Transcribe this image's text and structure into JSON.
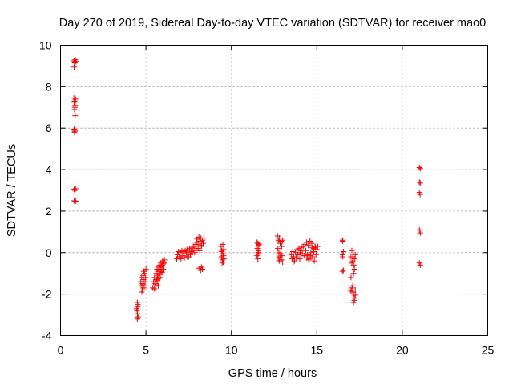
{
  "chart_data": {
    "type": "scatter",
    "title": "Day 270 of 2019, Sidereal Day-to-day VTEC variation (SDTVAR) for receiver mao0",
    "xlabel": "GPS time / hours",
    "ylabel": "SDTVAR / TECUs",
    "xlim": [
      0,
      25
    ],
    "ylim": [
      -4,
      10
    ],
    "xticks": [
      "0",
      "5",
      "10",
      "15",
      "20",
      "25"
    ],
    "yticks": [
      "-4",
      "-2",
      "0",
      "2",
      "4",
      "6",
      "8",
      "10"
    ],
    "grid": true,
    "marker": "+",
    "color": "#ff0000",
    "series": [
      {
        "name": "SDTVAR",
        "points": [
          [
            0.8,
            9.25
          ],
          [
            0.82,
            9.2
          ],
          [
            0.86,
            9.3
          ],
          [
            0.9,
            9.22
          ],
          [
            0.84,
            9.15
          ],
          [
            0.8,
            8.95
          ],
          [
            0.78,
            7.45
          ],
          [
            0.82,
            7.3
          ],
          [
            0.86,
            7.1
          ],
          [
            0.84,
            7.0
          ],
          [
            0.8,
            7.25
          ],
          [
            0.88,
            7.4
          ],
          [
            0.82,
            6.9
          ],
          [
            0.86,
            6.6
          ],
          [
            0.8,
            5.95
          ],
          [
            0.84,
            5.85
          ],
          [
            0.82,
            5.8
          ],
          [
            0.86,
            5.9
          ],
          [
            0.8,
            3.05
          ],
          [
            0.84,
            3.0
          ],
          [
            0.88,
            3.08
          ],
          [
            0.8,
            2.5
          ],
          [
            0.84,
            2.45
          ],
          [
            0.88,
            2.48
          ],
          [
            4.5,
            -2.4
          ],
          [
            4.52,
            -2.6
          ],
          [
            4.48,
            -2.8
          ],
          [
            4.5,
            -2.95
          ],
          [
            4.54,
            -3.1
          ],
          [
            4.5,
            -3.2
          ],
          [
            4.46,
            -2.7
          ],
          [
            4.52,
            -2.5
          ],
          [
            4.7,
            -1.4
          ],
          [
            4.72,
            -1.6
          ],
          [
            4.75,
            -1.2
          ],
          [
            4.78,
            -1.8
          ],
          [
            4.8,
            -1.5
          ],
          [
            4.83,
            -1.1
          ],
          [
            4.86,
            -1.3
          ],
          [
            4.88,
            -0.9
          ],
          [
            4.9,
            -1.7
          ],
          [
            4.92,
            -1.0
          ],
          [
            4.95,
            -1.4
          ],
          [
            4.98,
            -1.2
          ],
          [
            5.0,
            -0.8
          ],
          [
            4.76,
            -1.9
          ],
          [
            4.84,
            -1.55
          ],
          [
            5.4,
            -1.7
          ],
          [
            5.45,
            -1.4
          ],
          [
            5.5,
            -1.2
          ],
          [
            5.55,
            -1.5
          ],
          [
            5.6,
            -1.0
          ],
          [
            5.62,
            -1.3
          ],
          [
            5.65,
            -0.8
          ],
          [
            5.68,
            -1.1
          ],
          [
            5.7,
            -0.9
          ],
          [
            5.72,
            -1.6
          ],
          [
            5.75,
            -0.7
          ],
          [
            5.78,
            -1.0
          ],
          [
            5.8,
            -0.6
          ],
          [
            5.82,
            -1.2
          ],
          [
            5.85,
            -0.8
          ],
          [
            5.88,
            -0.5
          ],
          [
            5.9,
            -0.9
          ],
          [
            5.92,
            -0.7
          ],
          [
            5.95,
            -0.6
          ],
          [
            5.98,
            -0.4
          ],
          [
            6.0,
            -0.8
          ],
          [
            6.02,
            -0.55
          ],
          [
            6.05,
            -0.5
          ],
          [
            6.08,
            -0.35
          ],
          [
            5.5,
            -1.75
          ],
          [
            5.58,
            -1.55
          ],
          [
            5.66,
            -1.35
          ],
          [
            5.74,
            -1.25
          ],
          [
            5.84,
            -1.05
          ],
          [
            5.94,
            -0.95
          ],
          [
            6.8,
            -0.3
          ],
          [
            6.85,
            -0.1
          ],
          [
            6.9,
            0.05
          ],
          [
            6.95,
            -0.2
          ],
          [
            7.0,
            0.0
          ],
          [
            7.05,
            -0.3
          ],
          [
            7.1,
            0.1
          ],
          [
            7.15,
            -0.15
          ],
          [
            7.2,
            0.05
          ],
          [
            7.25,
            -0.25
          ],
          [
            7.3,
            0.1
          ],
          [
            7.35,
            -0.05
          ],
          [
            7.4,
            0.15
          ],
          [
            7.45,
            0.0
          ],
          [
            7.5,
            -0.2
          ],
          [
            7.55,
            0.2
          ],
          [
            7.6,
            -0.1
          ],
          [
            7.65,
            0.05
          ],
          [
            7.7,
            0.25
          ],
          [
            7.75,
            0.1
          ],
          [
            7.8,
            0.3
          ],
          [
            7.85,
            0.0
          ],
          [
            7.9,
            0.4
          ],
          [
            7.95,
            0.2
          ],
          [
            7.0,
            -0.2
          ],
          [
            7.4,
            -0.2
          ],
          [
            7.95,
            0.5
          ],
          [
            8.0,
            0.65
          ],
          [
            8.05,
            0.4
          ],
          [
            8.1,
            0.75
          ],
          [
            8.15,
            0.55
          ],
          [
            8.2,
            0.7
          ],
          [
            8.25,
            0.35
          ],
          [
            8.3,
            0.6
          ],
          [
            8.35,
            0.45
          ],
          [
            8.4,
            0.7
          ],
          [
            8.05,
            0.2
          ],
          [
            8.15,
            0.1
          ],
          [
            8.25,
            0.3
          ],
          [
            8.1,
            -0.75
          ],
          [
            8.2,
            -0.85
          ],
          [
            8.3,
            -0.8
          ],
          [
            8.25,
            -0.7
          ],
          [
            9.4,
            0.3
          ],
          [
            9.45,
            0.1
          ],
          [
            9.5,
            -0.05
          ],
          [
            9.55,
            0.15
          ],
          [
            9.42,
            -0.2
          ],
          [
            9.48,
            -0.35
          ],
          [
            9.52,
            -0.45
          ],
          [
            9.56,
            -0.3
          ],
          [
            9.44,
            0.05
          ],
          [
            9.5,
            0.4
          ],
          [
            9.46,
            -0.5
          ],
          [
            9.54,
            -0.15
          ],
          [
            11.5,
            0.5
          ],
          [
            11.55,
            0.45
          ],
          [
            11.6,
            0.35
          ],
          [
            11.52,
            0.2
          ],
          [
            11.58,
            0.0
          ],
          [
            11.55,
            -0.05
          ],
          [
            11.5,
            -0.15
          ],
          [
            11.55,
            -0.3
          ],
          [
            11.6,
            0.1
          ],
          [
            11.62,
            0.4
          ],
          [
            12.7,
            0.8
          ],
          [
            12.75,
            0.6
          ],
          [
            12.8,
            0.7
          ],
          [
            12.85,
            0.45
          ],
          [
            12.9,
            0.55
          ],
          [
            12.95,
            0.3
          ],
          [
            13.0,
            0.6
          ],
          [
            12.72,
            0.2
          ],
          [
            12.78,
            0.0
          ],
          [
            12.84,
            -0.2
          ],
          [
            12.88,
            -0.05
          ],
          [
            12.92,
            -0.35
          ],
          [
            12.96,
            -0.15
          ],
          [
            13.0,
            -0.45
          ],
          [
            12.8,
            -0.4
          ],
          [
            12.74,
            -0.25
          ],
          [
            13.5,
            -0.1
          ],
          [
            13.55,
            -0.3
          ],
          [
            13.6,
            0.05
          ],
          [
            13.65,
            -0.2
          ],
          [
            13.7,
            -0.4
          ],
          [
            13.75,
            0.0
          ],
          [
            13.8,
            -0.25
          ],
          [
            13.85,
            0.15
          ],
          [
            13.9,
            -0.1
          ],
          [
            13.95,
            0.2
          ],
          [
            14.0,
            -0.3
          ],
          [
            14.05,
            0.1
          ],
          [
            14.1,
            0.25
          ],
          [
            14.15,
            -0.05
          ],
          [
            14.2,
            0.3
          ],
          [
            14.25,
            -0.15
          ],
          [
            14.3,
            0.4
          ],
          [
            14.35,
            0.1
          ],
          [
            14.4,
            0.5
          ],
          [
            14.45,
            -0.1
          ],
          [
            14.5,
            0.35
          ],
          [
            14.55,
            -0.3
          ],
          [
            14.6,
            0.55
          ],
          [
            14.65,
            0.0
          ],
          [
            14.7,
            0.45
          ],
          [
            14.75,
            -0.2
          ],
          [
            14.8,
            0.2
          ],
          [
            14.85,
            -0.4
          ],
          [
            14.9,
            0.3
          ],
          [
            14.95,
            -0.1
          ],
          [
            15.0,
            0.15
          ],
          [
            15.05,
            0.3
          ],
          [
            14.42,
            -0.25
          ],
          [
            14.52,
            -0.35
          ],
          [
            14.62,
            -0.15
          ],
          [
            14.72,
            0.25
          ],
          [
            14.82,
            0.05
          ],
          [
            14.92,
            0.25
          ],
          [
            13.62,
            -0.45
          ],
          [
            14.02,
            0.0
          ],
          [
            16.5,
            0.6
          ],
          [
            16.52,
            0.55
          ],
          [
            16.55,
            0.05
          ],
          [
            16.5,
            -0.1
          ],
          [
            16.52,
            -0.2
          ],
          [
            16.55,
            -0.85
          ],
          [
            16.5,
            -0.9
          ],
          [
            17.0,
            -0.2
          ],
          [
            17.05,
            0.1
          ],
          [
            17.1,
            -0.4
          ],
          [
            17.15,
            -0.6
          ],
          [
            17.2,
            -0.8
          ],
          [
            17.05,
            -0.5
          ],
          [
            17.1,
            -0.2
          ],
          [
            17.15,
            -1.0
          ],
          [
            17.2,
            -0.3
          ],
          [
            17.25,
            -0.1
          ],
          [
            17.0,
            -1.2
          ],
          [
            17.05,
            -1.7
          ],
          [
            17.1,
            -1.9
          ],
          [
            17.15,
            -2.0
          ],
          [
            17.2,
            -2.2
          ],
          [
            17.25,
            -1.8
          ],
          [
            17.15,
            -2.4
          ],
          [
            17.1,
            -1.6
          ],
          [
            17.2,
            -2.3
          ],
          [
            17.0,
            -1.85
          ],
          [
            17.25,
            -2.05
          ],
          [
            21.0,
            4.1
          ],
          [
            21.05,
            4.05
          ],
          [
            21.0,
            3.4
          ],
          [
            21.05,
            3.35
          ],
          [
            21.0,
            2.9
          ],
          [
            21.04,
            2.8
          ],
          [
            21.0,
            1.1
          ],
          [
            21.05,
            0.95
          ],
          [
            21.0,
            -0.5
          ],
          [
            21.05,
            -0.6
          ]
        ]
      }
    ]
  }
}
